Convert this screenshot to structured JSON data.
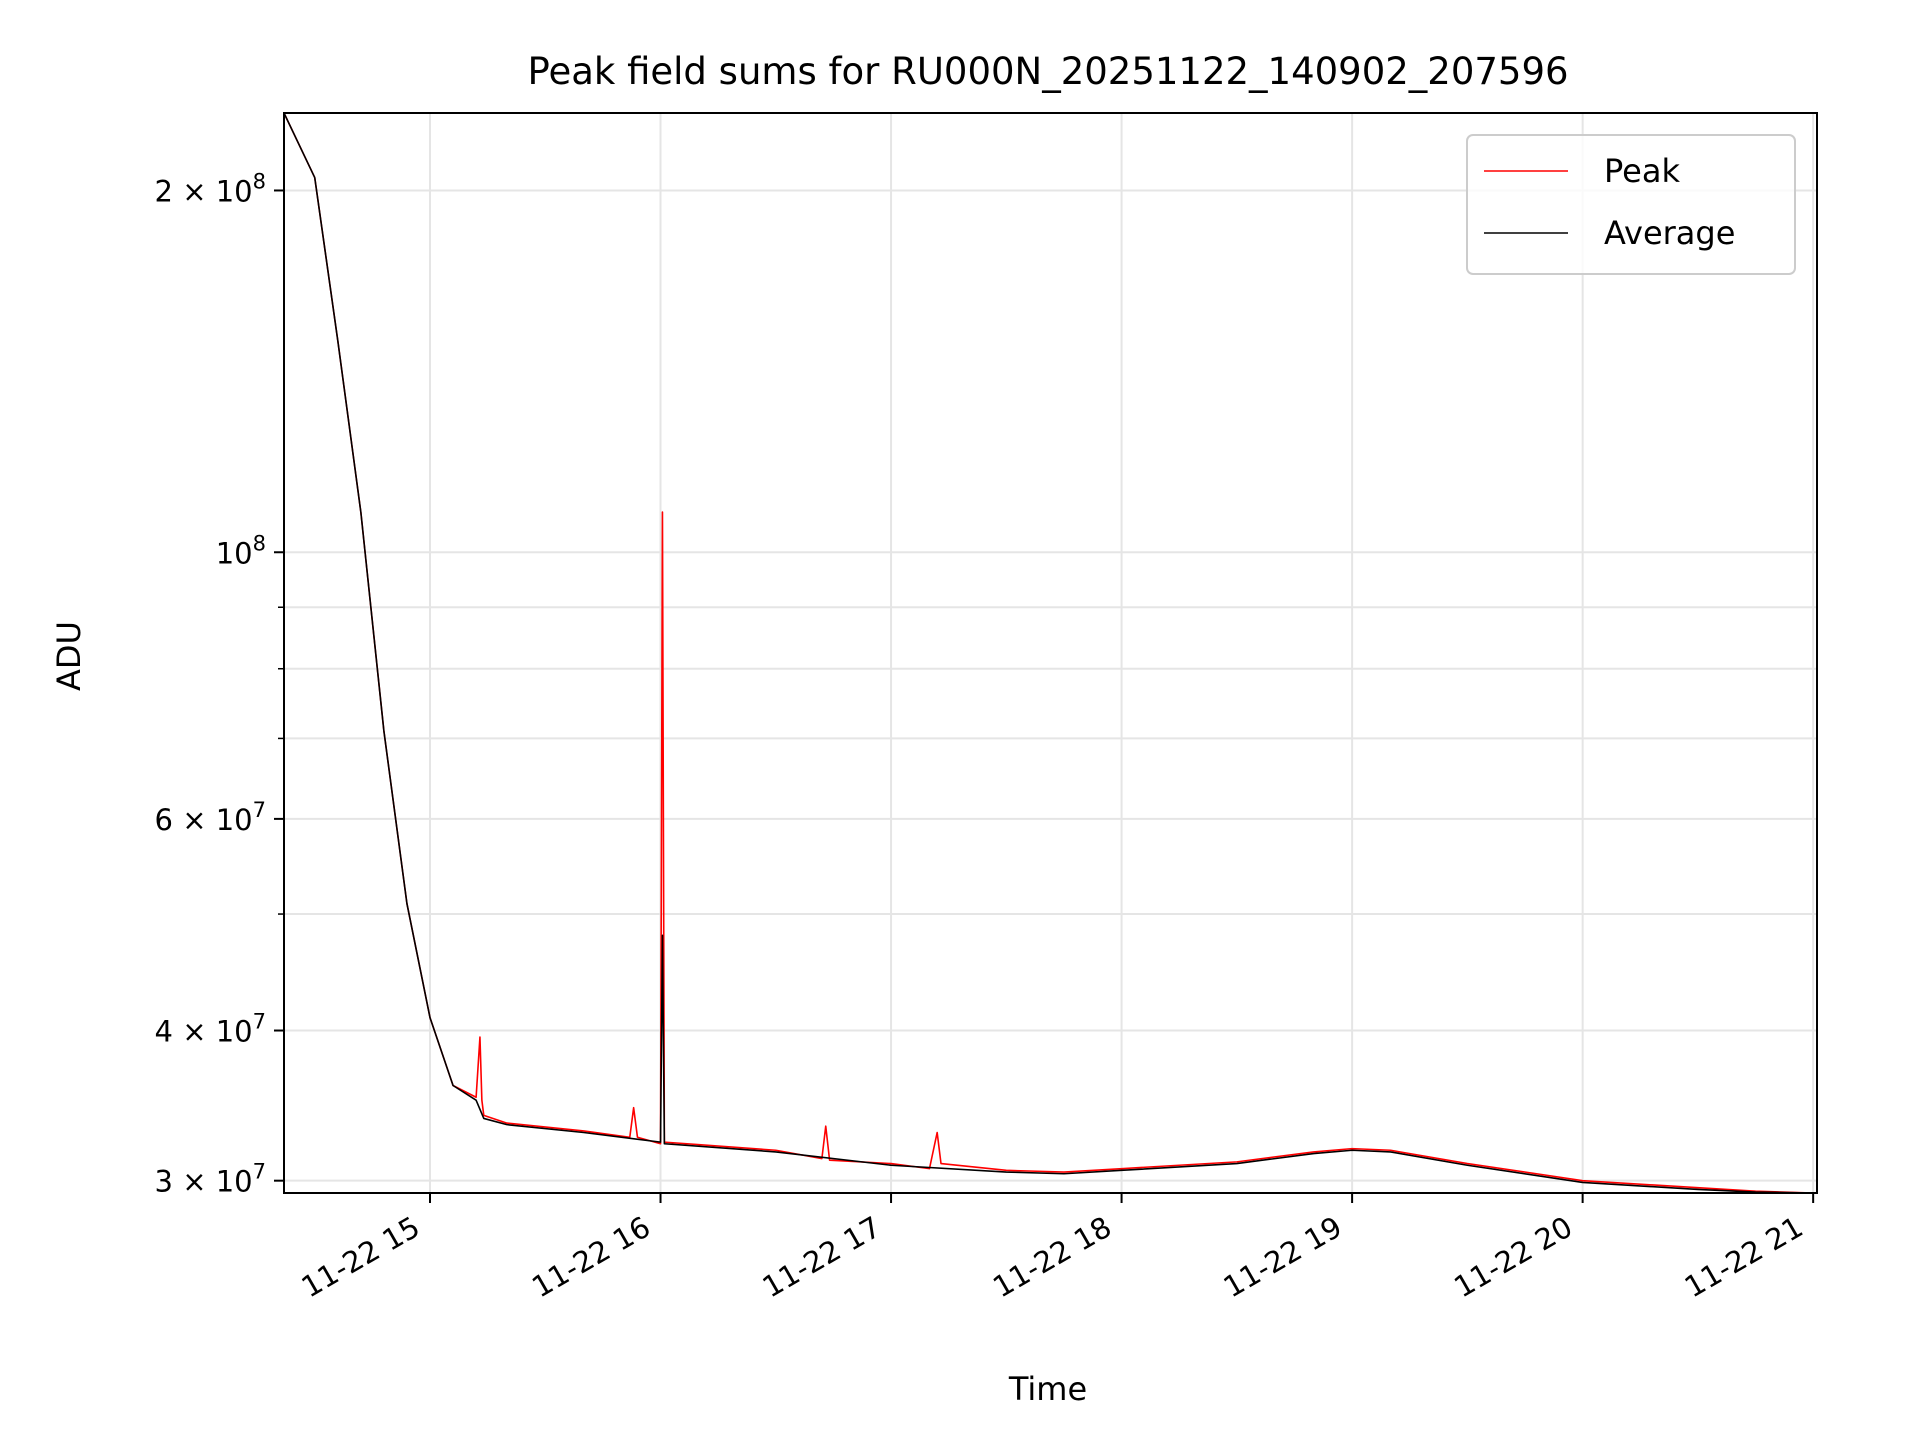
{
  "chart_data": {
    "type": "line",
    "title": "Peak field sums for RU000N_20251122_140902_207596",
    "xlabel": "Time",
    "ylabel": "ADU",
    "y_scale": "log",
    "ylim": [
      29300000,
      232000000
    ],
    "xlim": [
      "2025-11-22T14:22:00",
      "2025-11-22T21:01:00"
    ],
    "grid": true,
    "legend_position": "top-right",
    "x_ticks": [
      {
        "t": "2025-11-22T15:00:00",
        "label": "11-22 15"
      },
      {
        "t": "2025-11-22T16:00:00",
        "label": "11-22 16"
      },
      {
        "t": "2025-11-22T17:00:00",
        "label": "11-22 17"
      },
      {
        "t": "2025-11-22T18:00:00",
        "label": "11-22 18"
      },
      {
        "t": "2025-11-22T19:00:00",
        "label": "11-22 19"
      },
      {
        "t": "2025-11-22T20:00:00",
        "label": "11-22 20"
      },
      {
        "t": "2025-11-22T21:00:00",
        "label": "11-22 21"
      }
    ],
    "y_ticks": [
      {
        "v": 30000000,
        "mantissa": "3",
        "exp": "7"
      },
      {
        "v": 40000000,
        "mantissa": "4",
        "exp": "7"
      },
      {
        "v": 60000000,
        "mantissa": "6",
        "exp": "7"
      },
      {
        "v": 100000000,
        "mantissa": "",
        "exp": "8"
      },
      {
        "v": 200000000,
        "mantissa": "2",
        "exp": "8"
      }
    ],
    "y_minor_ticks": [
      50000000,
      70000000,
      80000000,
      90000000
    ],
    "series": [
      {
        "name": "Peak",
        "color": "#ff0000",
        "x": [
          "2025-11-22T14:22:00",
          "2025-11-22T14:30:00",
          "2025-11-22T14:36:00",
          "2025-11-22T14:42:00",
          "2025-11-22T14:48:00",
          "2025-11-22T14:54:00",
          "2025-11-22T15:00:00",
          "2025-11-22T15:06:00",
          "2025-11-22T15:12:00",
          "2025-11-22T15:13:00",
          "2025-11-22T15:13:30",
          "2025-11-22T15:14:00",
          "2025-11-22T15:20:00",
          "2025-11-22T15:40:00",
          "2025-11-22T15:52:00",
          "2025-11-22T15:53:00",
          "2025-11-22T15:54:00",
          "2025-11-22T16:00:00",
          "2025-11-22T16:00:30",
          "2025-11-22T16:01:00",
          "2025-11-22T16:30:00",
          "2025-11-22T16:42:00",
          "2025-11-22T16:43:00",
          "2025-11-22T16:44:00",
          "2025-11-22T17:00:00",
          "2025-11-22T17:10:00",
          "2025-11-22T17:12:00",
          "2025-11-22T17:13:00",
          "2025-11-22T17:30:00",
          "2025-11-22T17:45:00",
          "2025-11-22T18:00:00",
          "2025-11-22T18:30:00",
          "2025-11-22T18:50:00",
          "2025-11-22T19:00:00",
          "2025-11-22T19:10:00",
          "2025-11-22T19:30:00",
          "2025-11-22T20:00:00",
          "2025-11-22T20:30:00",
          "2025-11-22T20:45:00",
          "2025-11-22T21:00:00"
        ],
        "y": [
          232000000,
          205000000,
          150000000,
          108000000,
          71000000,
          51000000,
          41000000,
          36000000,
          35200000,
          39500000,
          35000000,
          34000000,
          33500000,
          33000000,
          32600000,
          34500000,
          32600000,
          32200000,
          108000000,
          32300000,
          31800000,
          31300000,
          33300000,
          31200000,
          31000000,
          30700000,
          32900000,
          31000000,
          30600000,
          30500000,
          30700000,
          31100000,
          31700000,
          31900000,
          31800000,
          31000000,
          30000000,
          29600000,
          29400000,
          29300000
        ]
      },
      {
        "name": "Average",
        "color": "#000000",
        "x": [
          "2025-11-22T14:22:00",
          "2025-11-22T14:30:00",
          "2025-11-22T14:36:00",
          "2025-11-22T14:42:00",
          "2025-11-22T14:48:00",
          "2025-11-22T14:54:00",
          "2025-11-22T15:00:00",
          "2025-11-22T15:06:00",
          "2025-11-22T15:12:00",
          "2025-11-22T15:14:00",
          "2025-11-22T15:20:00",
          "2025-11-22T15:40:00",
          "2025-11-22T16:00:00",
          "2025-11-22T16:00:30",
          "2025-11-22T16:01:00",
          "2025-11-22T16:30:00",
          "2025-11-22T17:00:00",
          "2025-11-22T17:30:00",
          "2025-11-22T17:45:00",
          "2025-11-22T18:00:00",
          "2025-11-22T18:30:00",
          "2025-11-22T18:50:00",
          "2025-11-22T19:00:00",
          "2025-11-22T19:10:00",
          "2025-11-22T19:30:00",
          "2025-11-22T20:00:00",
          "2025-11-22T20:30:00",
          "2025-11-22T20:45:00",
          "2025-11-22T21:00:00"
        ],
        "y": [
          232000000,
          205000000,
          150000000,
          108000000,
          71000000,
          51000000,
          41000000,
          36000000,
          35000000,
          33800000,
          33400000,
          32900000,
          32300000,
          48000000,
          32200000,
          31700000,
          30900000,
          30500000,
          30400000,
          30600000,
          31000000,
          31600000,
          31800000,
          31700000,
          30900000,
          29900000,
          29500000,
          29350000,
          29300000
        ]
      }
    ]
  }
}
